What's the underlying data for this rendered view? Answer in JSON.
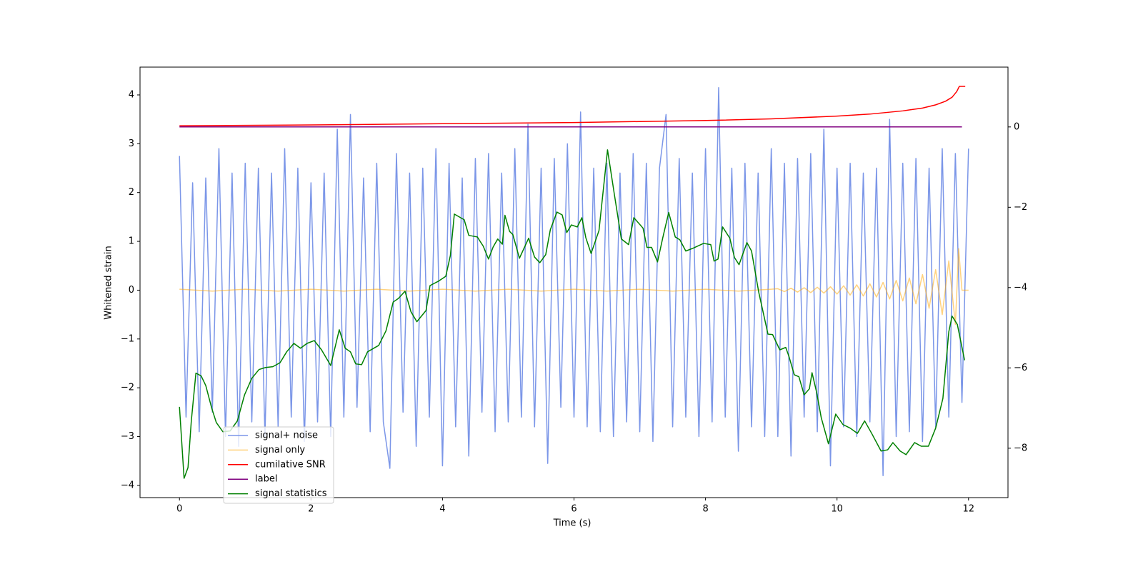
{
  "chart_data": {
    "type": "line",
    "xlabel": "Time (s)",
    "ylabel": "Whitened strain",
    "xlim": [
      -0.6,
      12.6
    ],
    "ylim": [
      -4.25,
      4.57
    ],
    "y2lim": [
      -9.23,
      1.49
    ],
    "xticks": [
      0,
      2,
      4,
      6,
      8,
      10,
      12
    ],
    "yticks": [
      {
        "value": -4,
        "label": "−4"
      },
      {
        "value": -3,
        "label": "−3"
      },
      {
        "value": -2,
        "label": "−2"
      },
      {
        "value": -1,
        "label": "−1"
      },
      0,
      1,
      2,
      3,
      4
    ],
    "y2ticks": [
      {
        "value": -8,
        "label": "−8"
      },
      {
        "value": -6,
        "label": "−6"
      },
      {
        "value": -4,
        "label": "−4"
      },
      {
        "value": -2,
        "label": "−2"
      },
      0
    ],
    "series": [
      {
        "name": "signal+ noise",
        "color": "#7b96e8",
        "x": [
          0,
          0.1,
          0.2,
          0.3,
          0.4,
          0.5,
          0.6,
          0.7,
          0.8,
          0.9,
          1,
          1.1,
          1.2,
          1.3,
          1.4,
          1.5,
          1.6,
          1.7,
          1.8,
          1.9,
          2,
          2.1,
          2.2,
          2.3,
          2.4,
          2.5,
          2.6,
          2.7,
          2.8,
          2.9,
          3,
          3.1,
          3.2,
          3.3,
          3.4,
          3.5,
          3.6,
          3.7,
          3.8,
          3.9,
          4,
          4.1,
          4.2,
          4.3,
          4.4,
          4.5,
          4.6,
          4.7,
          4.8,
          4.9,
          5,
          5.1,
          5.2,
          5.3,
          5.4,
          5.5,
          5.6,
          5.7,
          5.8,
          5.9,
          6,
          6.1,
          6.2,
          6.3,
          6.4,
          6.5,
          6.6,
          6.7,
          6.8,
          6.9,
          7,
          7.1,
          7.2,
          7.3,
          7.4,
          7.5,
          7.6,
          7.7,
          7.8,
          7.9,
          8,
          8.1,
          8.2,
          8.3,
          8.4,
          8.5,
          8.6,
          8.7,
          8.8,
          8.9,
          9,
          9.1,
          9.2,
          9.3,
          9.4,
          9.5,
          9.6,
          9.7,
          9.8,
          9.9,
          10,
          10.1,
          10.2,
          10.3,
          10.4,
          10.5,
          10.6,
          10.7,
          10.8,
          10.9,
          11,
          11.1,
          11.2,
          11.3,
          11.4,
          11.5,
          11.6,
          11.7,
          11.8,
          11.9,
          12
        ],
        "values": [
          2.75,
          -2.6,
          2.2,
          -2.9,
          2.3,
          -2.5,
          2.9,
          -3.0,
          2.4,
          -3.2,
          2.6,
          -2.7,
          2.5,
          -3.0,
          2.4,
          -2.8,
          2.9,
          -2.6,
          2.5,
          -3.1,
          2.2,
          -2.7,
          2.4,
          -3.0,
          3.3,
          -2.6,
          3.6,
          -2.4,
          2.3,
          -2.9,
          2.6,
          -2.7,
          -3.65,
          2.8,
          -2.5,
          2.4,
          -3.2,
          2.5,
          -2.6,
          2.9,
          -3.6,
          2.6,
          -2.8,
          2.3,
          -3.4,
          2.7,
          -2.5,
          2.8,
          -2.9,
          2.4,
          -2.7,
          2.9,
          -2.6,
          3.4,
          -2.8,
          2.5,
          -3.55,
          2.7,
          -2.4,
          3.0,
          -2.6,
          3.65,
          -2.8,
          2.5,
          -2.9,
          2.6,
          -3.0,
          2.4,
          -2.7,
          2.8,
          -2.9,
          2.6,
          -3.1,
          2.5,
          3.6,
          -2.8,
          2.7,
          -2.6,
          2.4,
          -3.0,
          2.9,
          -2.7,
          4.15,
          -2.6,
          2.5,
          -3.3,
          2.6,
          -2.8,
          2.4,
          -3.0,
          2.9,
          -3.0,
          2.6,
          -3.4,
          2.7,
          -2.6,
          2.8,
          -2.9,
          3.3,
          -3.6,
          2.5,
          -2.8,
          2.6,
          -3.0,
          2.4,
          -2.7,
          2.5,
          -3.8,
          3.5,
          -3.0,
          2.6,
          -2.9,
          2.7,
          -3.1,
          2.5,
          -2.8,
          2.9,
          -2.6,
          2.8,
          -2.3,
          2.9
        ]
      },
      {
        "name": "signal only",
        "color": "orange",
        "alpha": 0.5,
        "x": [
          0,
          0.5,
          1,
          1.5,
          2,
          2.5,
          3,
          3.5,
          4,
          4.5,
          5,
          5.5,
          6,
          6.5,
          7,
          7.5,
          8,
          8.5,
          9,
          9.1,
          9.2,
          9.3,
          9.4,
          9.5,
          9.6,
          9.7,
          9.8,
          9.9,
          10,
          10.1,
          10.2,
          10.3,
          10.4,
          10.5,
          10.6,
          10.7,
          10.8,
          10.9,
          11,
          11.1,
          11.2,
          11.3,
          11.4,
          11.5,
          11.6,
          11.7,
          11.8,
          11.85,
          11.9,
          12
        ],
        "values": [
          0.02,
          -0.02,
          0.02,
          -0.02,
          0.02,
          -0.02,
          0.02,
          -0.02,
          0.02,
          -0.02,
          0.02,
          -0.02,
          0.02,
          -0.02,
          0.02,
          -0.02,
          0.02,
          -0.02,
          0.02,
          0.03,
          -0.03,
          0.04,
          -0.04,
          0.05,
          -0.05,
          0.06,
          -0.06,
          0.07,
          -0.08,
          0.09,
          -0.1,
          0.11,
          -0.12,
          0.13,
          -0.14,
          0.16,
          -0.18,
          0.2,
          -0.22,
          0.25,
          -0.28,
          0.32,
          -0.37,
          0.42,
          -0.5,
          0.6,
          -0.7,
          0.85,
          0,
          0
        ]
      },
      {
        "name": "cumilative SNR",
        "color": "red",
        "axis": "y2",
        "x": [
          0,
          2,
          4,
          6,
          8,
          9,
          10,
          10.5,
          11,
          11.3,
          11.5,
          11.65,
          11.75,
          11.82,
          11.86,
          11.95
        ],
        "values": [
          0.03,
          0.05,
          0.08,
          0.11,
          0.16,
          0.2,
          0.27,
          0.32,
          0.4,
          0.47,
          0.55,
          0.64,
          0.74,
          0.88,
          1.01,
          1.01
        ]
      },
      {
        "name": "label",
        "color": "purple",
        "axis": "y2",
        "x": [
          0,
          11.9
        ],
        "values": [
          0,
          0
        ]
      },
      {
        "name": "signal statistics",
        "color": "green",
        "axis": "y2",
        "x": [
          0,
          0.07,
          0.13,
          0.18,
          0.25,
          0.33,
          0.4,
          0.49,
          0.56,
          0.66,
          0.77,
          0.88,
          0.99,
          1.1,
          1.21,
          1.31,
          1.42,
          1.53,
          1.63,
          1.74,
          1.84,
          1.94,
          2.05,
          2.16,
          2.3,
          2.43,
          2.52,
          2.6,
          2.68,
          2.77,
          2.86,
          3.03,
          3.14,
          3.25,
          3.33,
          3.43,
          3.52,
          3.61,
          3.75,
          3.81,
          3.94,
          4.05,
          4.12,
          4.18,
          4.33,
          4.4,
          4.53,
          4.62,
          4.7,
          4.77,
          4.84,
          4.91,
          4.95,
          5.02,
          5.07,
          5.17,
          5.31,
          5.4,
          5.48,
          5.57,
          5.64,
          5.74,
          5.82,
          5.89,
          5.96,
          6.05,
          6.12,
          6.18,
          6.26,
          6.38,
          6.51,
          6.61,
          6.72,
          6.83,
          6.91,
          7.05,
          7.11,
          7.18,
          7.27,
          7.35,
          7.44,
          7.54,
          7.61,
          7.7,
          7.81,
          7.97,
          8.08,
          8.13,
          8.19,
          8.26,
          8.37,
          8.44,
          8.51,
          8.63,
          8.7,
          8.81,
          8.95,
          9.02,
          9.13,
          9.22,
          9.27,
          9.35,
          9.42,
          9.5,
          9.58,
          9.62,
          9.69,
          9.76,
          9.87,
          9.98,
          10.09,
          10.2,
          10.31,
          10.42,
          10.53,
          10.67,
          10.77,
          10.85,
          10.96,
          11.05,
          11.18,
          11.28,
          11.39,
          11.5,
          11.61,
          11.7,
          11.75,
          11.83,
          11.94
        ],
        "values": [
          -6.97,
          -8.75,
          -8.48,
          -7.32,
          -6.13,
          -6.2,
          -6.44,
          -7.0,
          -7.36,
          -7.59,
          -7.57,
          -7.32,
          -6.67,
          -6.26,
          -6.04,
          -5.99,
          -5.97,
          -5.87,
          -5.6,
          -5.39,
          -5.51,
          -5.39,
          -5.32,
          -5.55,
          -5.94,
          -5.05,
          -5.51,
          -5.6,
          -5.9,
          -5.92,
          -5.6,
          -5.44,
          -5.08,
          -4.36,
          -4.27,
          -4.09,
          -4.6,
          -4.85,
          -4.57,
          -3.95,
          -3.84,
          -3.72,
          -3.2,
          -2.17,
          -2.31,
          -2.7,
          -2.74,
          -2.97,
          -3.29,
          -2.99,
          -2.79,
          -2.92,
          -2.2,
          -2.6,
          -2.68,
          -3.27,
          -2.77,
          -3.24,
          -3.38,
          -3.18,
          -2.56,
          -2.12,
          -2.19,
          -2.63,
          -2.44,
          -2.49,
          -2.26,
          -2.76,
          -3.15,
          -2.58,
          -0.57,
          -1.64,
          -2.79,
          -2.93,
          -2.26,
          -2.52,
          -3.0,
          -3.0,
          -3.36,
          -2.76,
          -2.13,
          -2.74,
          -2.81,
          -3.09,
          -3.02,
          -2.9,
          -2.93,
          -3.34,
          -3.29,
          -2.49,
          -2.77,
          -3.25,
          -3.43,
          -2.88,
          -3.09,
          -4.12,
          -5.16,
          -5.17,
          -5.55,
          -5.49,
          -5.72,
          -6.17,
          -6.22,
          -6.67,
          -6.52,
          -6.12,
          -6.61,
          -7.24,
          -7.89,
          -7.15,
          -7.41,
          -7.5,
          -7.63,
          -7.32,
          -7.64,
          -8.07,
          -8.04,
          -7.86,
          -8.07,
          -8.16,
          -7.86,
          -7.95,
          -7.95,
          -7.5,
          -6.76,
          -5.1,
          -4.71,
          -4.92,
          -5.81
        ]
      }
    ]
  }
}
